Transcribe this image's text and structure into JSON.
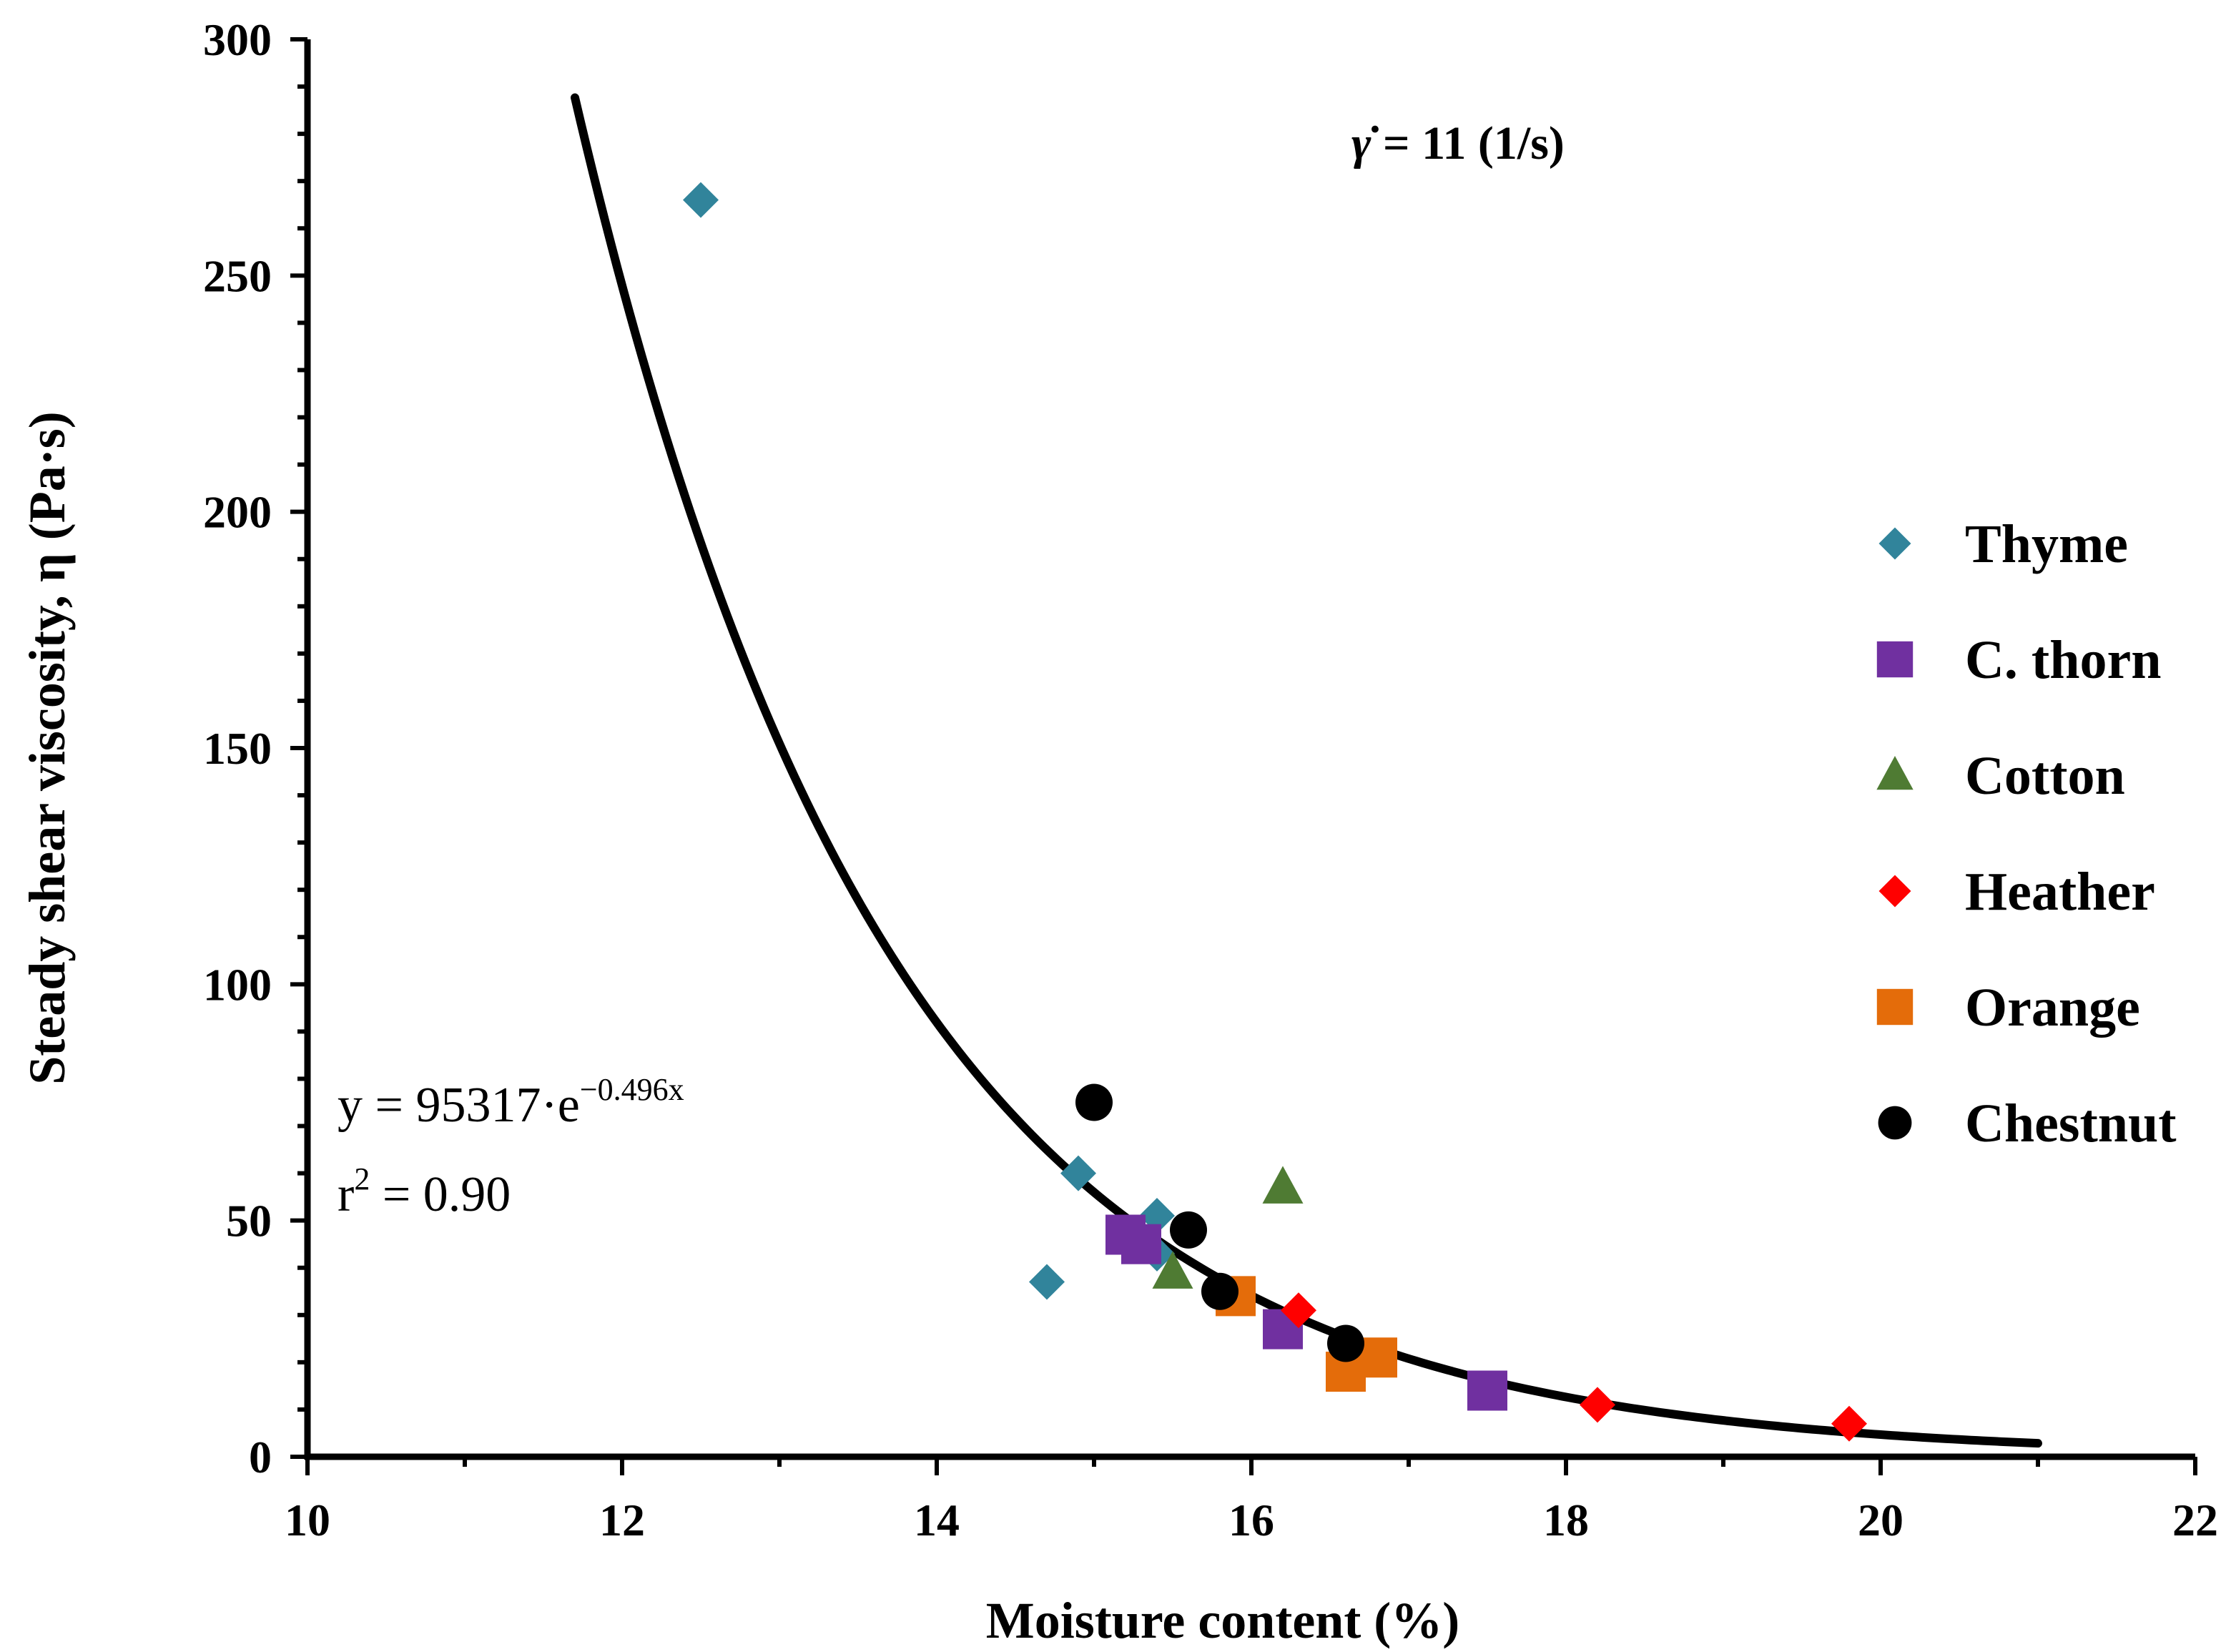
{
  "chart_data": {
    "type": "scatter",
    "title": "",
    "xlabel": "Moisture content (%)",
    "ylabel": "Steady shear viscosity, η (Pa·s)",
    "xlim": [
      10,
      22
    ],
    "ylim": [
      0,
      300
    ],
    "x_ticks": [
      10,
      12,
      14,
      16,
      18,
      20,
      22
    ],
    "y_ticks": [
      0,
      50,
      100,
      150,
      200,
      250,
      300
    ],
    "x_tick_labels": [
      "10",
      "12",
      "14",
      "16",
      "18",
      "20",
      "22"
    ],
    "y_tick_labels": [
      "0",
      "50",
      "100",
      "150",
      "200",
      "250",
      "300"
    ],
    "legend_position": "right",
    "grid": false,
    "annotation": {
      "shear_symbol": "γ̇",
      "shear_rest": " = 11 (1/s)"
    },
    "fit": {
      "type": "exponential",
      "a": 95317,
      "b": -0.496,
      "x_range": [
        11.7,
        21.0
      ],
      "eq_prefix": "y = 95317·e",
      "eq_exponent": "−0.496x",
      "r2_prefix": "r",
      "r2_sup": "2",
      "r2_rest": " = 0.90",
      "color": "#000000"
    },
    "series": [
      {
        "name": "Thyme",
        "marker": "diamond",
        "color": "#31849b",
        "points": [
          [
            12.5,
            266
          ],
          [
            14.7,
            37
          ],
          [
            14.9,
            60
          ],
          [
            15.4,
            51
          ],
          [
            15.4,
            43
          ]
        ]
      },
      {
        "name": "C. thorn",
        "marker": "square",
        "color": "#7030a0",
        "points": [
          [
            15.2,
            47
          ],
          [
            15.3,
            45
          ],
          [
            16.2,
            27
          ],
          [
            17.5,
            14
          ]
        ]
      },
      {
        "name": "Cotton",
        "marker": "triangle",
        "color": "#4f7b33",
        "points": [
          [
            15.5,
            39
          ],
          [
            16.2,
            57
          ]
        ]
      },
      {
        "name": "Heather",
        "marker": "diamond",
        "color": "#ff0000",
        "points": [
          [
            16.3,
            31
          ],
          [
            18.2,
            11
          ],
          [
            19.8,
            7
          ]
        ]
      },
      {
        "name": "Orange",
        "marker": "square",
        "color": "#e46c0a",
        "points": [
          [
            15.9,
            34
          ],
          [
            16.6,
            18
          ],
          [
            16.8,
            21
          ]
        ]
      },
      {
        "name": "Chestnut",
        "marker": "circle",
        "color": "#000000",
        "points": [
          [
            15.0,
            75
          ],
          [
            15.6,
            48
          ],
          [
            15.8,
            35
          ],
          [
            16.6,
            24
          ]
        ]
      }
    ]
  }
}
